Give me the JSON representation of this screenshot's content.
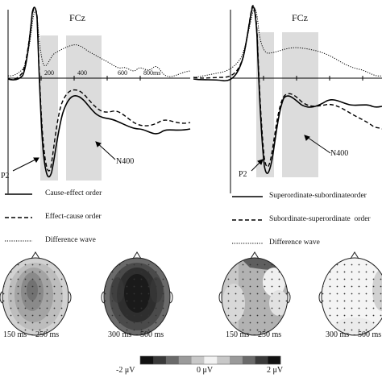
{
  "figure": {
    "left_panel": {
      "electrode": "FCz",
      "ticks": [
        "200",
        "400",
        "600",
        "800ms"
      ],
      "components": [
        "P2",
        "N400"
      ],
      "legend": [
        {
          "label": "Cause-effect order",
          "style": "solid"
        },
        {
          "label": "Effect-cause order",
          "style": "dashed"
        },
        {
          "label": "Difference wave",
          "style": "dotted"
        }
      ]
    },
    "right_panel": {
      "electrode": "FCz",
      "components": [
        "P2",
        "N400"
      ],
      "legend": [
        {
          "label": "Superordinate-subordinateorder",
          "style": "solid"
        },
        {
          "label": "Subordinate-superordinate  order",
          "style": "dashed"
        },
        {
          "label": "Difference wave",
          "style": "dotted"
        }
      ]
    },
    "topomaps": {
      "windows": [
        "150 ms  - 250 ms",
        "300 ms  - 500 ms",
        "150 ms  - 250 ms",
        "300 ms  - 500 ms"
      ]
    },
    "colorbar": {
      "min_label": "-2 μV",
      "mid_label": "0 μV",
      "max_label": "2 μV",
      "colors": [
        "#111111",
        "#3a3a3a",
        "#6a6a6a",
        "#9a9a9a",
        "#c8c8c8",
        "#f2f2f2",
        "#c8c8c8",
        "#9a9a9a",
        "#6a6a6a",
        "#3a3a3a",
        "#111111"
      ]
    }
  }
}
